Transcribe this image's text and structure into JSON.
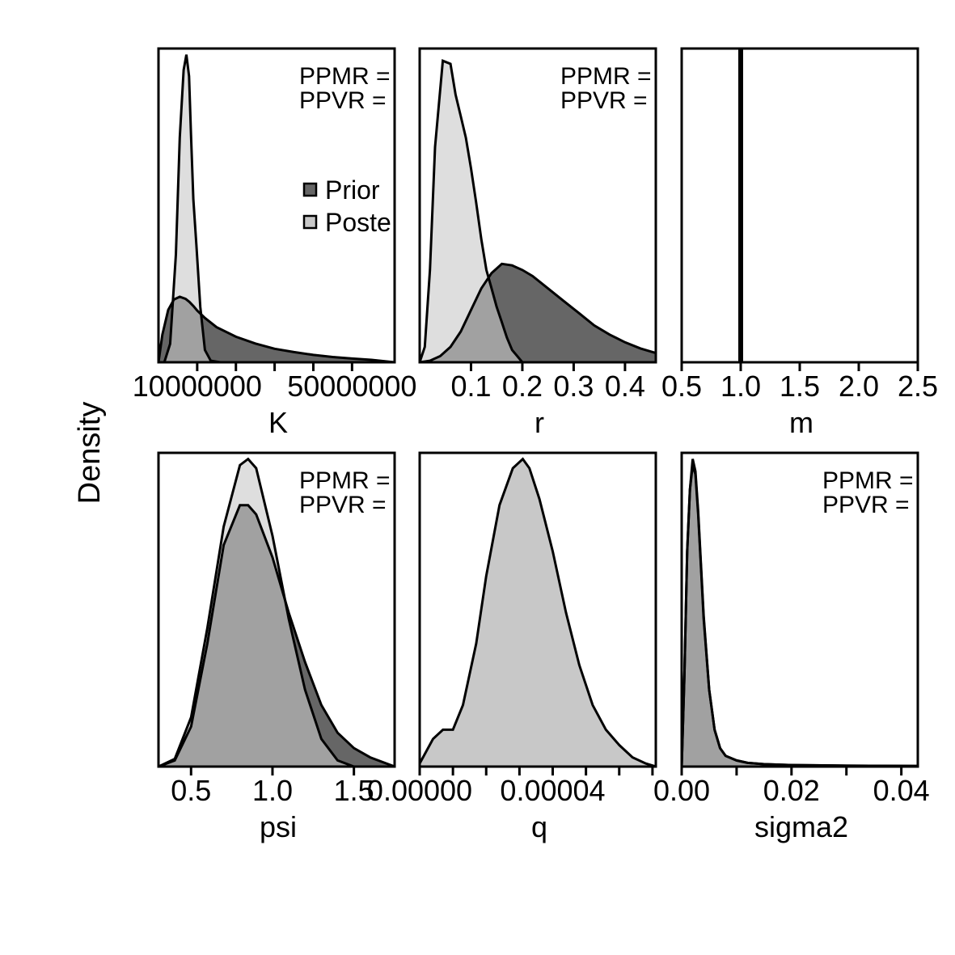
{
  "colors": {
    "prior": "#666666",
    "posterior": "#c8c8c8",
    "overlap": "#9a9a9a",
    "overlap_line": "#888888",
    "line": "#000000"
  },
  "figure": {
    "ylabel": "Density"
  },
  "legend": {
    "labels": [
      "Prior",
      "Poste"
    ]
  },
  "chart_data": [
    {
      "type": "area",
      "id": "K",
      "xlabel": "K",
      "xlim": [
        0,
        61000000
      ],
      "ylim": [
        0,
        1.02
      ],
      "ticks": [
        10000000,
        20000000,
        30000000,
        40000000,
        50000000
      ],
      "tick_labels": [
        {
          "v": 10000000,
          "t": "10000000"
        },
        {
          "v": 50000000,
          "t": "50000000"
        }
      ],
      "annotation": [
        "PPMR =",
        "PPVR ="
      ],
      "show_legend": true,
      "prior": {
        "x": [
          0,
          1000000,
          2500000,
          4000000,
          5500000,
          7000000,
          8000000,
          9000000,
          10000000,
          12000000,
          15000000,
          20000000,
          25000000,
          30000000,
          35000000,
          40000000,
          45000000,
          50000000,
          55000000,
          61000000
        ],
        "y": [
          0.0,
          0.09,
          0.17,
          0.204,
          0.213,
          0.206,
          0.196,
          0.183,
          0.168,
          0.144,
          0.114,
          0.083,
          0.061,
          0.044,
          0.033,
          0.024,
          0.017,
          0.012,
          0.008,
          0.0
        ]
      },
      "posterior": {
        "x": [
          1500000,
          3000000,
          4500000,
          5500000,
          6500000,
          7200000,
          7900000,
          8400000,
          9000000,
          9800000,
          10800000,
          12000000,
          13500000,
          16000000,
          61000000
        ],
        "y": [
          0.0,
          0.06,
          0.35,
          0.73,
          0.95,
          1.0,
          0.93,
          0.74,
          0.53,
          0.38,
          0.18,
          0.04,
          0.005,
          0.0,
          0.0
        ]
      }
    },
    {
      "type": "area",
      "id": "r",
      "xlabel": "r",
      "xlim": [
        0,
        0.46
      ],
      "ylim": [
        0,
        1.02
      ],
      "ticks": [
        0.1,
        0.2,
        0.3,
        0.4
      ],
      "tick_labels": [
        {
          "v": 0.1,
          "t": "0.1"
        },
        {
          "v": 0.2,
          "t": "0.2"
        },
        {
          "v": 0.3,
          "t": "0.3"
        },
        {
          "v": 0.4,
          "t": "0.4"
        }
      ],
      "annotation": [
        "PPMR =",
        "PPVR ="
      ],
      "show_legend": false,
      "prior": {
        "x": [
          0.0,
          0.02,
          0.04,
          0.06,
          0.08,
          0.1,
          0.12,
          0.14,
          0.16,
          0.18,
          0.2,
          0.22,
          0.25,
          0.28,
          0.31,
          0.34,
          0.37,
          0.4,
          0.43,
          0.46
        ],
        "y": [
          0.0,
          0.005,
          0.02,
          0.05,
          0.1,
          0.17,
          0.24,
          0.29,
          0.32,
          0.315,
          0.3,
          0.28,
          0.24,
          0.2,
          0.16,
          0.12,
          0.09,
          0.065,
          0.045,
          0.03
        ]
      },
      "posterior": {
        "x": [
          0.0,
          0.01,
          0.02,
          0.03,
          0.045,
          0.06,
          0.07,
          0.08,
          0.09,
          0.1,
          0.11,
          0.12,
          0.13,
          0.14,
          0.15,
          0.16,
          0.17,
          0.18,
          0.2,
          0.22,
          0.46
        ],
        "y": [
          0.0,
          0.05,
          0.3,
          0.7,
          0.98,
          0.97,
          0.87,
          0.8,
          0.73,
          0.63,
          0.52,
          0.4,
          0.3,
          0.24,
          0.18,
          0.13,
          0.08,
          0.04,
          0.0,
          0.0,
          0.0
        ]
      }
    },
    {
      "type": "area",
      "id": "m",
      "xlabel": "m",
      "xlim": [
        0.5,
        2.5
      ],
      "ylim": [
        0,
        1.02
      ],
      "ticks": [
        0.5,
        1.0,
        1.5,
        2.0,
        2.5
      ],
      "tick_labels": [
        {
          "v": 0.5,
          "t": "0.5"
        },
        {
          "v": 1.0,
          "t": "1.0"
        },
        {
          "v": 1.5,
          "t": "1.5"
        },
        {
          "v": 2.0,
          "t": "2.0"
        },
        {
          "v": 2.5,
          "t": "2.5"
        }
      ],
      "annotation": [],
      "show_legend": false,
      "vline": 1.0
    },
    {
      "type": "area",
      "id": "psi",
      "xlabel": "psi",
      "xlim": [
        0.3,
        1.75
      ],
      "ylim": [
        0,
        1.02
      ],
      "ticks": [
        0.5,
        1.0,
        1.5
      ],
      "tick_labels": [
        {
          "v": 0.5,
          "t": "0.5"
        },
        {
          "v": 1.0,
          "t": "1.0"
        },
        {
          "v": 1.5,
          "t": "1.5"
        }
      ],
      "annotation": [
        "PPMR =",
        "PPVR ="
      ],
      "show_legend": false,
      "prior": {
        "x": [
          0.3,
          0.4,
          0.5,
          0.6,
          0.7,
          0.8,
          0.85,
          0.9,
          1.0,
          1.1,
          1.2,
          1.3,
          1.4,
          1.5,
          1.6,
          1.75
        ],
        "y": [
          0.0,
          0.02,
          0.13,
          0.4,
          0.72,
          0.85,
          0.85,
          0.82,
          0.68,
          0.5,
          0.34,
          0.2,
          0.11,
          0.06,
          0.03,
          0.0
        ]
      },
      "posterior": {
        "x": [
          0.3,
          0.4,
          0.5,
          0.6,
          0.7,
          0.8,
          0.85,
          0.9,
          1.0,
          1.1,
          1.2,
          1.3,
          1.4,
          1.5,
          1.75
        ],
        "y": [
          0.0,
          0.025,
          0.16,
          0.45,
          0.78,
          0.98,
          1.0,
          0.97,
          0.75,
          0.48,
          0.25,
          0.09,
          0.02,
          0.0,
          0.0
        ]
      }
    },
    {
      "type": "area",
      "id": "q",
      "xlabel": "q",
      "xlim": [
        0,
        7.1e-05
      ],
      "ylim": [
        0,
        1.02
      ],
      "ticks": [
        0,
        1e-05,
        2e-05,
        3e-05,
        4e-05,
        5e-05,
        6e-05,
        7e-05
      ],
      "tick_labels": [
        {
          "v": 0,
          "t": "0.00000"
        },
        {
          "v": 4e-05,
          "t": "0.00004"
        }
      ],
      "annotation": [],
      "show_legend": false,
      "posterior": {
        "x": [
          0,
          4e-06,
          7e-06,
          1e-05,
          1.3e-05,
          1.7e-05,
          2e-05,
          2.4e-05,
          2.8e-05,
          3.1e-05,
          3.3e-05,
          3.6e-05,
          4e-05,
          4.4e-05,
          4.8e-05,
          5.2e-05,
          5.6e-05,
          6e-05,
          6.4e-05,
          6.8e-05,
          7.1e-05
        ],
        "y": [
          0.01,
          0.09,
          0.12,
          0.12,
          0.2,
          0.4,
          0.62,
          0.85,
          0.97,
          1.0,
          0.97,
          0.87,
          0.7,
          0.5,
          0.33,
          0.2,
          0.12,
          0.07,
          0.03,
          0.01,
          0.0
        ]
      }
    },
    {
      "type": "area",
      "id": "sigma2",
      "xlabel": "sigma2",
      "xlim": [
        0,
        0.043
      ],
      "ylim": [
        0,
        1.02
      ],
      "ticks": [
        0,
        0.01,
        0.02,
        0.03,
        0.04
      ],
      "tick_labels": [
        {
          "v": 0,
          "t": "0.00"
        },
        {
          "v": 0.02,
          "t": "0.02"
        },
        {
          "v": 0.04,
          "t": "0.04"
        }
      ],
      "annotation": [
        "PPMR =",
        "PPVR ="
      ],
      "show_legend": false,
      "prior": {
        "x": [
          0,
          0.0005,
          0.001,
          0.0015,
          0.002,
          0.0025,
          0.003,
          0.0035,
          0.004,
          0.005,
          0.006,
          0.007,
          0.008,
          0.01,
          0.012,
          0.015,
          0.02,
          0.03,
          0.043
        ],
        "y": [
          0.0,
          0.3,
          0.7,
          0.9,
          0.98,
          0.95,
          0.82,
          0.65,
          0.48,
          0.25,
          0.12,
          0.06,
          0.035,
          0.02,
          0.012,
          0.008,
          0.005,
          0.003,
          0.002
        ]
      },
      "posterior": {
        "x": [
          0,
          0.0005,
          0.001,
          0.0015,
          0.002,
          0.0025,
          0.003,
          0.0035,
          0.004,
          0.005,
          0.006,
          0.007,
          0.008,
          0.01,
          0.012,
          0.015,
          0.02,
          0.03,
          0.043
        ],
        "y": [
          0.0,
          0.3,
          0.7,
          0.9,
          1.0,
          0.96,
          0.83,
          0.66,
          0.49,
          0.25,
          0.12,
          0.06,
          0.035,
          0.02,
          0.012,
          0.008,
          0.005,
          0.003,
          0.002
        ]
      }
    }
  ]
}
